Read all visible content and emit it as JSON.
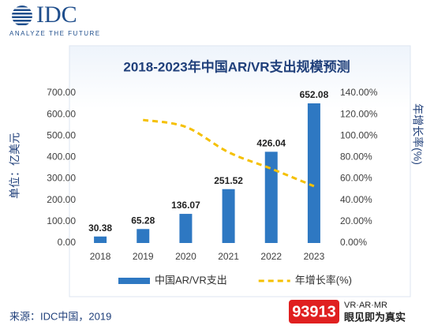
{
  "header": {
    "logo": "IDC",
    "tagline": "ANALYZE THE FUTURE"
  },
  "chart_data": {
    "type": "bar",
    "title": "2018-2023年中国AR/VR支出规模预测",
    "y_label": "单位：亿美元",
    "y2_label": "年增长率(%)",
    "categories": [
      "2018",
      "2019",
      "2020",
      "2021",
      "2022",
      "2023"
    ],
    "series": [
      {
        "name": "中国AR/VR支出",
        "type": "bar",
        "color": "#2e78c2",
        "values": [
          30.38,
          65.28,
          136.07,
          251.52,
          426.04,
          652.08
        ]
      },
      {
        "name": "年增长率(%)",
        "type": "line",
        "axis": "y2",
        "dashed": true,
        "color": "#f5c000",
        "values": [
          null,
          114.9,
          108.4,
          84.8,
          69.4,
          53.1
        ]
      }
    ],
    "ylim": [
      0,
      700
    ],
    "yticks": [
      {
        "value": 0,
        "label": "0.00"
      },
      {
        "value": 100,
        "label": "100.00"
      },
      {
        "value": 200,
        "label": "200.00"
      },
      {
        "value": 300,
        "label": "300.00"
      },
      {
        "value": 400,
        "label": "400.00"
      },
      {
        "value": 500,
        "label": "500.00"
      },
      {
        "value": 600,
        "label": "600.00"
      },
      {
        "value": 700,
        "label": "700.00"
      }
    ],
    "y2lim": [
      0,
      140
    ],
    "y2ticks": [
      {
        "value": 0,
        "label": "0.00%"
      },
      {
        "value": 20,
        "label": "20.00%"
      },
      {
        "value": 40,
        "label": "40.00%"
      },
      {
        "value": 60,
        "label": "60.00%"
      },
      {
        "value": 80,
        "label": "80.00%"
      },
      {
        "value": 100,
        "label": "100.00%"
      },
      {
        "value": 120,
        "label": "120.00%"
      },
      {
        "value": 140,
        "label": "140.00%"
      }
    ],
    "legend": "bottom"
  },
  "source": "来源：IDC中国，2019",
  "watermark": {
    "number": "93913",
    "tag": "VR·AR·MR",
    "slogan": "眼见即为真实"
  }
}
